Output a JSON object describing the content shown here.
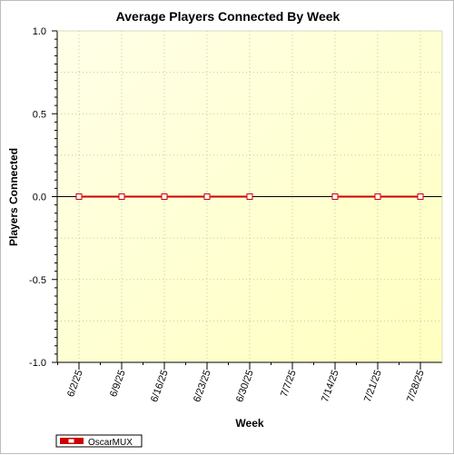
{
  "chart_data": {
    "type": "line",
    "title": "Average Players Connected By Week",
    "xlabel": "Week",
    "ylabel": "Players Connected",
    "categories": [
      "6/2/25",
      "6/9/25",
      "6/16/25",
      "6/23/25",
      "6/30/25",
      "7/7/25",
      "7/14/25",
      "7/21/25",
      "7/28/25"
    ],
    "series": [
      {
        "name": "OscarMUX",
        "color": "#cc0000",
        "values": [
          0,
          0,
          0,
          0,
          0,
          null,
          0,
          0,
          0
        ]
      }
    ],
    "ylim": [
      -1.0,
      1.0
    ],
    "yticks": [
      "1.0",
      "0.5",
      "0.0",
      "-0.5",
      "-1.0"
    ],
    "ytick_values": [
      1.0,
      0.5,
      0.0,
      -0.5,
      -1.0
    ],
    "grid": true,
    "legend_position": "bottom-left",
    "plot_background": [
      "#ffffe8",
      "#ffffc0"
    ]
  }
}
